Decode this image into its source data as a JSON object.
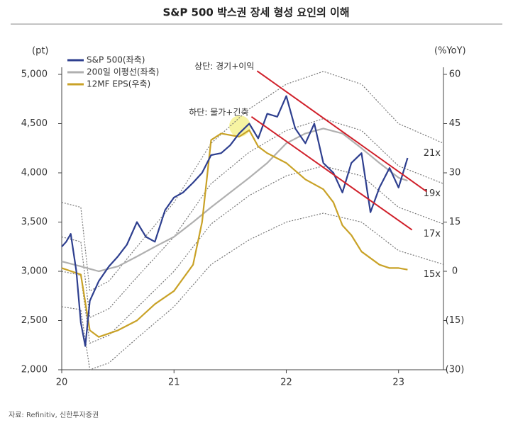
{
  "chart_data": {
    "type": "line",
    "title": "S&P 500 박스권 장세 형성 요인의 이해",
    "y_label": "(pt)",
    "y2_label": "(%YoY)",
    "source": "자료: Refinitiv, 신한투자증권",
    "xlim": [
      20,
      23.4
    ],
    "xticks": [
      20,
      21,
      22,
      23
    ],
    "ylim": [
      2000,
      5000
    ],
    "yticks": [
      {
        "value": 2000,
        "label": "2,000"
      },
      {
        "value": 2500,
        "label": "2,500"
      },
      {
        "value": 3000,
        "label": "3,000"
      },
      {
        "value": 3500,
        "label": "3,500"
      },
      {
        "value": 4000,
        "label": "4,000"
      },
      {
        "value": 4500,
        "label": "4,500"
      },
      {
        "value": 5000,
        "label": "5,000"
      }
    ],
    "y2lim": [
      -30,
      60
    ],
    "y2ticks": [
      60,
      45,
      30,
      15,
      0,
      {
        "value": -15,
        "label": "(15)"
      },
      {
        "value": -30,
        "label": "(30)"
      }
    ],
    "series": [
      {
        "name": "S&P 500(좌축)",
        "color": "#2e3f8f",
        "x": [
          20.0,
          20.04,
          20.08,
          20.13,
          20.17,
          20.21,
          20.25,
          20.33,
          20.42,
          20.5,
          20.58,
          20.67,
          20.75,
          20.83,
          20.92,
          21.0,
          21.08,
          21.17,
          21.25,
          21.33,
          21.42,
          21.5,
          21.58,
          21.67,
          21.75,
          21.83,
          21.92,
          22.0,
          22.08,
          22.17,
          22.25,
          22.33,
          22.42,
          22.5,
          22.58,
          22.67,
          22.75,
          22.83,
          22.92,
          23.0,
          23.08
        ],
        "values": [
          3250,
          3300,
          3380,
          3000,
          2480,
          2240,
          2700,
          2900,
          3050,
          3150,
          3270,
          3500,
          3350,
          3300,
          3620,
          3750,
          3800,
          3900,
          4000,
          4180,
          4200,
          4280,
          4400,
          4500,
          4350,
          4600,
          4570,
          4780,
          4450,
          4300,
          4500,
          4100,
          4000,
          3800,
          4100,
          4200,
          3600,
          3850,
          4050,
          3850,
          4150
        ]
      },
      {
        "name": "200일 이평선(좌축)",
        "color": "#b0b0b0",
        "x": [
          20.0,
          20.17,
          20.33,
          20.5,
          20.67,
          20.83,
          21.0,
          21.17,
          21.33,
          21.5,
          21.67,
          21.83,
          22.0,
          22.17,
          22.33,
          22.5,
          22.67,
          22.83,
          23.0,
          23.08
        ],
        "values": [
          3100,
          3050,
          3000,
          3050,
          3150,
          3250,
          3350,
          3500,
          3650,
          3800,
          3950,
          4100,
          4300,
          4400,
          4450,
          4400,
          4250,
          4100,
          3950,
          3920
        ]
      },
      {
        "name": "12MF EPS(우축)",
        "color": "#c9a227",
        "axis": "y2",
        "x": [
          20.0,
          20.17,
          20.25,
          20.33,
          20.5,
          20.67,
          20.83,
          21.0,
          21.17,
          21.25,
          21.33,
          21.42,
          21.58,
          21.67,
          21.75,
          21.83,
          22.0,
          22.17,
          22.33,
          22.42,
          22.5,
          22.58,
          22.67,
          22.83,
          22.92,
          23.0,
          23.08
        ],
        "values": [
          1,
          -1,
          -18,
          -20,
          -18,
          -15,
          -10,
          -6,
          2,
          15,
          40,
          42,
          41,
          43,
          38,
          36,
          33,
          28,
          25,
          21,
          14,
          11,
          6,
          2,
          1,
          1,
          0.5
        ]
      }
    ],
    "pe_bands": [
      {
        "name": "21x",
        "color": "#777",
        "x": [
          20.0,
          20.17,
          20.25,
          20.42,
          20.67,
          21.0,
          21.33,
          21.67,
          22.0,
          22.33,
          22.67,
          23.0,
          23.4
        ],
        "values": [
          3700,
          3650,
          2800,
          2900,
          3250,
          3700,
          4300,
          4650,
          4900,
          5030,
          4900,
          4500,
          4300
        ]
      },
      {
        "name": "19x",
        "color": "#777",
        "x": [
          20.0,
          20.17,
          20.25,
          20.42,
          20.67,
          21.0,
          21.33,
          21.67,
          22.0,
          22.33,
          22.67,
          23.0,
          23.4
        ],
        "values": [
          3350,
          3300,
          2530,
          2620,
          2940,
          3350,
          3890,
          4210,
          4430,
          4550,
          4430,
          4070,
          3890
        ]
      },
      {
        "name": "17x",
        "color": "#777",
        "x": [
          20.0,
          20.17,
          20.25,
          20.42,
          20.67,
          21.0,
          21.33,
          21.67,
          22.0,
          22.33,
          22.67,
          23.0,
          23.4
        ],
        "values": [
          3000,
          2960,
          2270,
          2350,
          2630,
          3000,
          3480,
          3770,
          3970,
          4070,
          3970,
          3650,
          3480
        ]
      },
      {
        "name": "15x",
        "color": "#777",
        "x": [
          20.0,
          20.17,
          20.25,
          20.42,
          20.67,
          21.0,
          21.33,
          21.67,
          22.0,
          22.33,
          22.67,
          23.0,
          23.4
        ],
        "values": [
          2640,
          2610,
          2000,
          2070,
          2320,
          2640,
          3070,
          3320,
          3500,
          3590,
          3500,
          3210,
          3070
        ]
      }
    ],
    "annotations": [
      {
        "text": "상단: 경기+이익",
        "color": "#d0202a",
        "x": [
          21.74,
          23.25
        ],
        "y": [
          5035,
          3810
        ]
      },
      {
        "text": "하단: 물가+긴축",
        "color": "#d0202a",
        "x": [
          21.69,
          23.12
        ],
        "y": [
          4570,
          3420
        ]
      }
    ]
  }
}
